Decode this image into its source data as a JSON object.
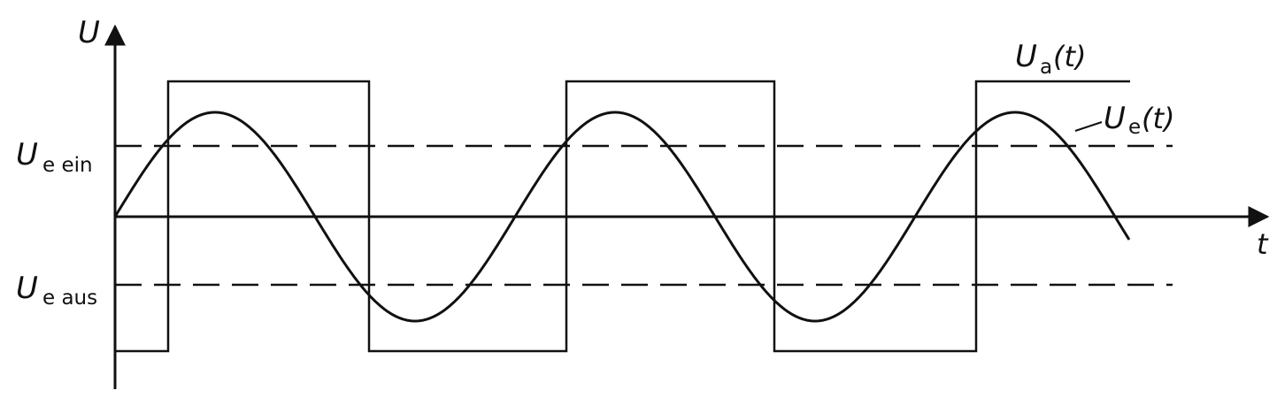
{
  "diagram": {
    "y_axis_label": "U",
    "x_axis_label": "t",
    "threshold_on": {
      "symbol": "U",
      "subscript": "e ein"
    },
    "threshold_off": {
      "symbol": "U",
      "subscript": "e aus"
    },
    "output_signal": {
      "symbol": "U",
      "subscript": "a",
      "arg": "(t)"
    },
    "input_signal": {
      "symbol": "U",
      "subscript": "e",
      "arg": "(t)"
    },
    "colors": {
      "ink": "#111111",
      "background": "#ffffff"
    }
  }
}
